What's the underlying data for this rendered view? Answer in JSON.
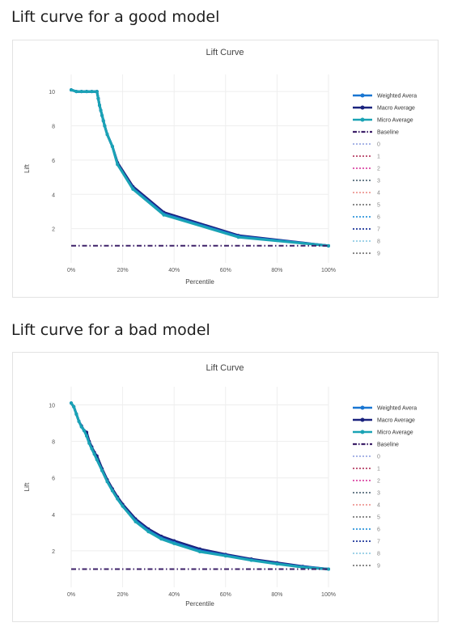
{
  "sections": [
    {
      "heading": "Lift curve for a good model"
    },
    {
      "heading": "Lift curve for a bad model"
    }
  ],
  "chart_data": [
    {
      "type": "line",
      "title": "Lift Curve",
      "xlabel": "Percentile",
      "ylabel": "Lift",
      "xlim": [
        0,
        100
      ],
      "ylim": [
        0,
        11
      ],
      "x_ticks": [
        0,
        20,
        40,
        60,
        80,
        100
      ],
      "x_tick_labels": [
        "0%",
        "20%",
        "40%",
        "60%",
        "80%",
        "100%"
      ],
      "y_ticks": [
        2,
        4,
        6,
        8,
        10
      ],
      "y_tick_labels": [
        "2",
        "4",
        "6",
        "8",
        "10"
      ],
      "grid": true,
      "legend_position": "right",
      "legend": [
        "Weighted Avera",
        "Macro Average",
        "Micro Average",
        "Baseline",
        "0",
        "1",
        "2",
        "3",
        "4",
        "5",
        "6",
        "7",
        "8",
        "9"
      ],
      "series": [
        {
          "name": "Macro Average",
          "color": "#1a237e",
          "x": [
            0,
            2,
            4,
            6,
            8,
            10,
            10.5,
            11,
            11.5,
            12,
            12.5,
            13,
            14,
            16,
            18,
            24,
            36,
            65,
            100
          ],
          "y": [
            10.1,
            10.0,
            10.0,
            10.0,
            10.0,
            10.0,
            9.6,
            9.2,
            8.9,
            8.6,
            8.3,
            8.0,
            7.5,
            6.8,
            5.85,
            4.45,
            2.95,
            1.6,
            1.0
          ]
        },
        {
          "name": "Weighted Avera",
          "color": "#1976d2",
          "x": [
            0,
            2,
            4,
            6,
            8,
            10,
            10.5,
            11,
            11.5,
            12,
            12.5,
            13,
            14,
            16,
            18,
            24,
            36,
            65,
            100
          ],
          "y": [
            10.1,
            10.0,
            10.0,
            10.0,
            10.0,
            10.0,
            9.6,
            9.2,
            8.9,
            8.6,
            8.3,
            8.0,
            7.5,
            6.8,
            5.75,
            4.35,
            2.85,
            1.55,
            1.0
          ]
        },
        {
          "name": "Micro Average",
          "color": "#1aa3b5",
          "x": [
            0,
            2,
            4,
            6,
            8,
            10,
            10.5,
            11,
            11.5,
            12,
            12.5,
            13,
            14,
            16,
            18,
            24,
            36,
            65,
            100
          ],
          "y": [
            10.1,
            10.0,
            10.0,
            10.0,
            10.0,
            10.0,
            9.6,
            9.2,
            8.9,
            8.6,
            8.3,
            8.0,
            7.5,
            6.8,
            5.75,
            4.3,
            2.8,
            1.5,
            1.0
          ]
        },
        {
          "name": "Baseline",
          "color": "#3d2068",
          "dash": true,
          "x": [
            0,
            100
          ],
          "y": [
            1,
            1
          ]
        }
      ]
    },
    {
      "type": "line",
      "title": "Lift Curve",
      "xlabel": "Percentile",
      "ylabel": "Lift",
      "xlim": [
        0,
        100
      ],
      "ylim": [
        0,
        11
      ],
      "x_ticks": [
        0,
        20,
        40,
        60,
        80,
        100
      ],
      "x_tick_labels": [
        "0%",
        "20%",
        "40%",
        "60%",
        "80%",
        "100%"
      ],
      "y_ticks": [
        2,
        4,
        6,
        8,
        10
      ],
      "y_tick_labels": [
        "2",
        "4",
        "6",
        "8",
        "10"
      ],
      "grid": true,
      "legend_position": "right",
      "legend": [
        "Weighted Avera",
        "Macro Average",
        "Micro Average",
        "Baseline",
        "0",
        "1",
        "2",
        "3",
        "4",
        "5",
        "6",
        "7",
        "8",
        "9"
      ],
      "series": [
        {
          "name": "Macro Average",
          "color": "#1a237e",
          "x": [
            0,
            1,
            2,
            3,
            4,
            5,
            6,
            7,
            8,
            9,
            10,
            12,
            14,
            16,
            18,
            20,
            25,
            30,
            35,
            40,
            50,
            60,
            70,
            80,
            90,
            100
          ],
          "y": [
            10.1,
            9.9,
            9.5,
            9.1,
            8.85,
            8.6,
            8.5,
            8.0,
            7.7,
            7.4,
            7.2,
            6.5,
            5.9,
            5.4,
            4.95,
            4.55,
            3.75,
            3.2,
            2.8,
            2.55,
            2.1,
            1.8,
            1.55,
            1.35,
            1.15,
            1.0
          ]
        },
        {
          "name": "Weighted Avera",
          "color": "#1976d2",
          "x": [
            0,
            1,
            2,
            3,
            4,
            5,
            6,
            7,
            8,
            9,
            10,
            12,
            14,
            16,
            18,
            20,
            25,
            30,
            35,
            40,
            50,
            60,
            70,
            80,
            90,
            100
          ],
          "y": [
            10.1,
            9.9,
            9.5,
            9.1,
            8.8,
            8.6,
            8.3,
            7.9,
            7.6,
            7.3,
            7.0,
            6.4,
            5.8,
            5.3,
            4.85,
            4.45,
            3.65,
            3.1,
            2.7,
            2.45,
            2.0,
            1.75,
            1.5,
            1.3,
            1.12,
            1.0
          ]
        },
        {
          "name": "Micro Average",
          "color": "#1aa3b5",
          "x": [
            0,
            1,
            2,
            3,
            4,
            5,
            6,
            7,
            8,
            9,
            10,
            12,
            14,
            16,
            18,
            20,
            25,
            30,
            35,
            40,
            50,
            60,
            70,
            80,
            90,
            100
          ],
          "y": [
            10.1,
            9.9,
            9.5,
            9.1,
            8.8,
            8.6,
            8.3,
            7.9,
            7.6,
            7.3,
            7.0,
            6.4,
            5.8,
            5.3,
            4.85,
            4.45,
            3.6,
            3.05,
            2.65,
            2.4,
            1.95,
            1.72,
            1.48,
            1.28,
            1.1,
            1.0
          ]
        },
        {
          "name": "Baseline",
          "color": "#3d2068",
          "dash": true,
          "x": [
            0,
            100
          ],
          "y": [
            1,
            1
          ]
        }
      ]
    }
  ],
  "legend_styles": [
    {
      "label": "Weighted Avera",
      "color": "#1976d2",
      "style": "solid-marker"
    },
    {
      "label": "Macro Average",
      "color": "#1a237e",
      "style": "solid-marker"
    },
    {
      "label": "Micro Average",
      "color": "#1aa3b5",
      "style": "solid-marker"
    },
    {
      "label": "Baseline",
      "color": "#3d2068",
      "style": "dashdot"
    },
    {
      "label": "0",
      "color": "#a7b4e6",
      "style": "dotted"
    },
    {
      "label": "1",
      "color": "#c05a7a",
      "style": "dotted"
    },
    {
      "label": "2",
      "color": "#e060b0",
      "style": "dotted"
    },
    {
      "label": "3",
      "color": "#6c7f8c",
      "style": "dotted"
    },
    {
      "label": "4",
      "color": "#f0a4a0",
      "style": "dotted"
    },
    {
      "label": "5",
      "color": "#8a8a8a",
      "style": "dotted"
    },
    {
      "label": "6",
      "color": "#4aa3e0",
      "style": "dotted"
    },
    {
      "label": "7",
      "color": "#3a4fa6",
      "style": "dotted"
    },
    {
      "label": "8",
      "color": "#9fd3e8",
      "style": "dotted"
    },
    {
      "label": "9",
      "color": "#8a8a8a",
      "style": "dotted"
    }
  ]
}
